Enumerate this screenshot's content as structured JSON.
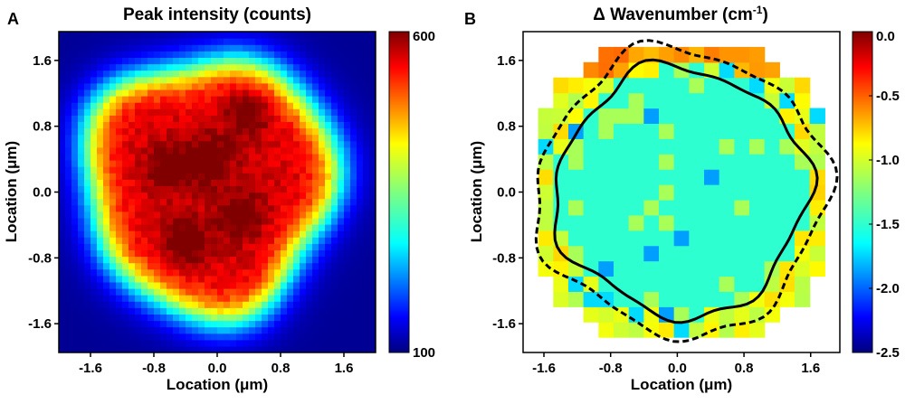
{
  "chart_data": [
    {
      "type": "heatmap",
      "panel_label": "A",
      "title": "Peak intensity (counts)",
      "xlabel": "Location (μm)",
      "ylabel": "Location (μm)",
      "xlim": [
        -2.0,
        2.0
      ],
      "ylim": [
        -1.95,
        1.95
      ],
      "xticks": [
        -1.6,
        -0.8,
        0.0,
        0.8,
        1.6
      ],
      "yticks": [
        -1.6,
        -0.8,
        0.0,
        0.8,
        1.6
      ],
      "xtick_labels": [
        "-1.6",
        "-0.8",
        "0.0",
        "0.8",
        "1.6"
      ],
      "ytick_labels": [
        "-1.6",
        "-0.8",
        "0.0",
        "0.8",
        "1.6"
      ],
      "colorbar": {
        "min": 100,
        "max": 600,
        "tick_values": [
          100,
          600
        ],
        "tick_labels": [
          "100",
          "600"
        ],
        "colormap": "jet"
      },
      "model": {
        "center": [
          -0.1,
          0.1
        ],
        "peak": 560,
        "background": 110,
        "radius": 1.55,
        "edge_softness": 0.32,
        "dark_spots": [
          {
            "x": -0.1,
            "y": 0.4
          },
          {
            "x": 0.3,
            "y": -0.3
          },
          {
            "x": -0.4,
            "y": -0.6
          },
          {
            "x": 0.4,
            "y": 1.0
          },
          {
            "x": -0.6,
            "y": 0.3
          }
        ]
      }
    },
    {
      "type": "heatmap",
      "panel_label": "B",
      "title": "Δ Wavenumber (cm",
      "title_sup": "-1",
      "title_end": ")",
      "xlabel": "Location (μm)",
      "ylabel": "Location (μm)",
      "xlim": [
        -1.85,
        1.95
      ],
      "ylim": [
        -1.95,
        1.95
      ],
      "xticks": [
        -1.6,
        -0.8,
        0.0,
        0.8,
        1.6
      ],
      "yticks": [
        -1.6,
        -0.8,
        0.0,
        0.8,
        1.6
      ],
      "xtick_labels": [
        "-1.6",
        "-0.8",
        "0.0",
        "0.8",
        "1.6"
      ],
      "ytick_labels": [
        "-1.6",
        "-0.8",
        "0.0",
        "0.8",
        "1.6"
      ],
      "colorbar": {
        "min": -2.5,
        "max": 0.0,
        "tick_values": [
          0.0,
          -0.5,
          -1.0,
          -1.5,
          -2.0,
          -2.5
        ],
        "tick_labels": [
          "0.0",
          "-0.5",
          "-1.0",
          "-1.5",
          "-2.0",
          "-2.5"
        ],
        "colormap": "jet"
      },
      "model": {
        "inner_value": -1.45,
        "outer_value": -1.0,
        "rim_value": -0.65,
        "contour_radius": 1.5,
        "data_radius": 1.95
      },
      "contours": [
        {
          "style": "solid",
          "radius": 1.5
        },
        {
          "style": "dashed",
          "radius": 1.72
        }
      ]
    }
  ]
}
